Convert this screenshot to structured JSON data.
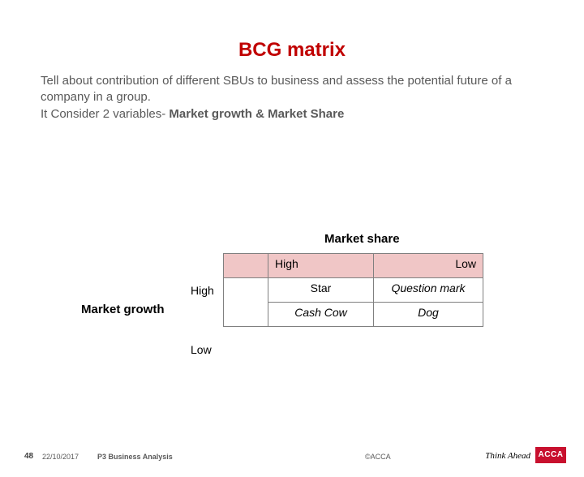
{
  "title": "BCG matrix",
  "title_color": "#c00000",
  "description_line1": "Tell about contribution of different SBUs to business and assess the potential future of a company in a group.",
  "description_line2_prefix": " It Consider 2 variables- ",
  "description_line2_bold": "Market growth & Market Share",
  "matrix": {
    "x_axis_title": "Market share",
    "y_axis_title": "Market growth",
    "x_labels": {
      "high": "High",
      "low": "Low"
    },
    "y_labels": {
      "high": "High",
      "low": "Low"
    },
    "cells": {
      "high_high": "Star",
      "high_low": "Question mark",
      "low_high": "Cash Cow",
      "low_low": "Dog"
    },
    "header_bg": "#f0c6c6",
    "border_color": "#808080"
  },
  "footer": {
    "page": "48",
    "date": "22/10/2017",
    "course": "P3  Business Analysis",
    "copyright": "©ACCA",
    "tagline": "Think Ahead",
    "logo_text": "ACCA",
    "logo_bg": "#c8102e"
  }
}
